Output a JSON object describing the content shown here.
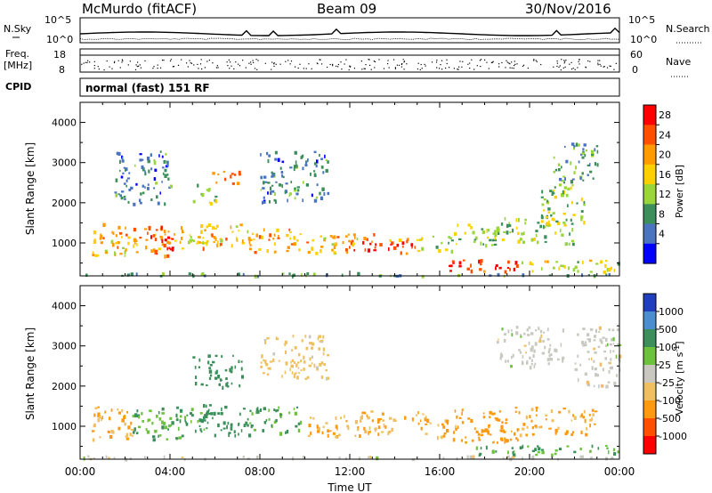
{
  "header": {
    "station": "McMurdo (fitACF)",
    "beam": "Beam 09",
    "date": "30/Nov/2016"
  },
  "strips": {
    "nsky_label": "N.Sky",
    "nsky_ticks": [
      "10^5",
      "10^0"
    ],
    "nsearch_label": "N.Search",
    "nsearch_ticks": [
      "10^5",
      "10^0"
    ],
    "freq_label_1": "Freq.",
    "freq_label_2": "[MHz]",
    "freq_ticks": [
      "18",
      "8"
    ],
    "nave_label": "Nave",
    "nave_ticks": [
      "60",
      "0"
    ],
    "cpid_label": "CPID",
    "cpid_text": "normal (fast) 151 RF"
  },
  "chart_data": [
    {
      "type": "heatmap",
      "name": "power",
      "ylabel": "Slant Range [km]",
      "xlabel": "",
      "ylim": [
        180,
        4500
      ],
      "xlim_hours": [
        0,
        24
      ],
      "yticks": [
        "1000",
        "2000",
        "3000",
        "4000"
      ],
      "colorbar": {
        "label": "Power [dB]",
        "ticks": [
          "28",
          "24",
          "20",
          "16",
          "12",
          "8",
          "4"
        ],
        "colors": [
          "#ff0000",
          "#ff5000",
          "#ff9a00",
          "#ffd000",
          "#9ad53a",
          "#3c8f5a",
          "#4a74c0",
          "#0000ff"
        ]
      },
      "echo_regions": [
        {
          "t": [
            0.5,
            2.5
          ],
          "r": [
            700,
            1500
          ],
          "level": 18
        },
        {
          "t": [
            2.3,
            4.6
          ],
          "r": [
            700,
            1500
          ],
          "level": 22
        },
        {
          "t": [
            3.6,
            4.1
          ],
          "r": [
            800,
            1200
          ],
          "level": 28
        },
        {
          "t": [
            4.2,
            5.7
          ],
          "r": [
            1000,
            1500
          ],
          "level": 14
        },
        {
          "t": [
            5.0,
            6.0
          ],
          "r": [
            2000,
            2500
          ],
          "level": 12
        },
        {
          "t": [
            5.5,
            7.2
          ],
          "r": [
            2500,
            2800
          ],
          "level": 22
        },
        {
          "t": [
            5.2,
            7.5
          ],
          "r": [
            900,
            1500
          ],
          "level": 18
        },
        {
          "t": [
            7.5,
            9.8
          ],
          "r": [
            800,
            1400
          ],
          "level": 20
        },
        {
          "t": [
            10.0,
            12.5
          ],
          "r": [
            750,
            1200
          ],
          "level": 18
        },
        {
          "t": [
            11.8,
            13.2
          ],
          "r": [
            800,
            1300
          ],
          "level": 24
        },
        {
          "t": [
            13.0,
            15.0
          ],
          "r": [
            750,
            1200
          ],
          "level": 22
        },
        {
          "t": [
            15.0,
            16.5
          ],
          "r": [
            800,
            1200
          ],
          "level": 14
        },
        {
          "t": [
            16.5,
            18.5
          ],
          "r": [
            900,
            1500
          ],
          "level": 12
        },
        {
          "t": [
            16.0,
            19.5
          ],
          "r": [
            300,
            600
          ],
          "level": 26
        },
        {
          "t": [
            19.5,
            24.0
          ],
          "r": [
            300,
            600
          ],
          "level": 14
        },
        {
          "t": [
            18.5,
            22.0
          ],
          "r": [
            1000,
            1700
          ],
          "level": 12
        },
        {
          "t": [
            20.5,
            22.5
          ],
          "r": [
            1500,
            2500
          ],
          "level": 12
        },
        {
          "t": [
            21.0,
            23.0
          ],
          "r": [
            2500,
            3500
          ],
          "level": 8
        },
        {
          "t": [
            8.0,
            11.0
          ],
          "r": [
            2000,
            3300
          ],
          "level": 6
        },
        {
          "t": [
            1.5,
            4.0
          ],
          "r": [
            2000,
            3300
          ],
          "level": 6
        },
        {
          "t": [
            0.0,
            24.0
          ],
          "r": [
            200,
            280
          ],
          "level": 8
        }
      ]
    },
    {
      "type": "heatmap",
      "name": "velocity",
      "ylabel": "Slant Range [km]",
      "xlabel": "Time UT",
      "ylim": [
        180,
        4500
      ],
      "xlim_hours": [
        0,
        24
      ],
      "yticks": [
        "1000",
        "2000",
        "3000",
        "4000"
      ],
      "xticks": [
        "00:00",
        "04:00",
        "08:00",
        "12:00",
        "16:00",
        "20:00",
        "00:00"
      ],
      "colorbar": {
        "label": "Velocity [m s",
        "unit_exp": "-1",
        "unit_close": "]",
        "ticks": [
          "1000",
          "500",
          "100",
          "25",
          "-25",
          "-100",
          "-500",
          "-1000"
        ],
        "colors": [
          "#1f3fbf",
          "#4a8ed0",
          "#3c8f5a",
          "#6cc23a",
          "#c8c8c0",
          "#f0c060",
          "#ff9a10",
          "#ff5000",
          "#ff0000"
        ]
      },
      "echo_regions": [
        {
          "t": [
            0.5,
            2.5
          ],
          "r": [
            700,
            1500
          ],
          "level": -100
        },
        {
          "t": [
            2.3,
            4.6
          ],
          "r": [
            700,
            1500
          ],
          "level": 100
        },
        {
          "t": [
            4.2,
            5.7
          ],
          "r": [
            900,
            1500
          ],
          "level": 100
        },
        {
          "t": [
            5.2,
            7.5
          ],
          "r": [
            800,
            1600
          ],
          "level": 200
        },
        {
          "t": [
            5.0,
            7.2
          ],
          "r": [
            2000,
            2800
          ],
          "level": 200
        },
        {
          "t": [
            7.5,
            9.8
          ],
          "r": [
            800,
            1500
          ],
          "level": 100
        },
        {
          "t": [
            10.0,
            12.5
          ],
          "r": [
            750,
            1300
          ],
          "level": -100
        },
        {
          "t": [
            12.5,
            15.5
          ],
          "r": [
            800,
            1400
          ],
          "level": -100
        },
        {
          "t": [
            15.5,
            16.8
          ],
          "r": [
            700,
            1200
          ],
          "level": -100
        },
        {
          "t": [
            16.5,
            19.5
          ],
          "r": [
            600,
            1500
          ],
          "level": -200
        },
        {
          "t": [
            19.5,
            23.0
          ],
          "r": [
            800,
            1500
          ],
          "level": -100
        },
        {
          "t": [
            17.5,
            24.0
          ],
          "r": [
            300,
            550
          ],
          "level": 100
        },
        {
          "t": [
            18.5,
            21.5
          ],
          "r": [
            2500,
            3500
          ],
          "level": 0
        },
        {
          "t": [
            22.0,
            24.0
          ],
          "r": [
            2000,
            3500
          ],
          "level": 0
        },
        {
          "t": [
            8.0,
            11.0
          ],
          "r": [
            2200,
            3300
          ],
          "level": -50
        },
        {
          "t": [
            0.0,
            24.0
          ],
          "r": [
            200,
            280
          ],
          "level": 0
        }
      ]
    }
  ]
}
